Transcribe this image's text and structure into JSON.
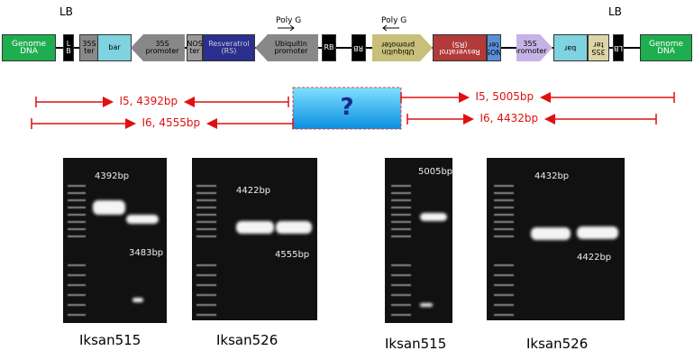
{
  "header": {
    "left_label": "LB",
    "right_label": "LB"
  },
  "construct": {
    "elements": [
      "Genome DNA",
      "L B",
      "35S ter",
      "bar",
      "35S promoter",
      "NOS ter",
      "Resveratrol (RS)",
      "Ubiquitin promoter",
      "RB",
      "RB",
      "Ubiquitin promoter",
      "Resveratrol (RS)",
      "NOS ter",
      "35S promoter",
      "bar",
      "35S ter",
      "LB",
      "Genome DNA"
    ],
    "primers": [
      "Poly G",
      "Poly G"
    ]
  },
  "amplicons": [
    "I5, 4392bp",
    "I6, 4555bp",
    "I5, 5005bp",
    "I6, 4432bp"
  ],
  "unknown": "?",
  "gels": [
    {
      "band_labels": [
        "4392bp",
        "3483bp"
      ],
      "caption": "Iksan515"
    },
    {
      "band_labels": [
        "4422bp",
        "4555bp"
      ],
      "caption": "Iksan526"
    },
    {
      "band_labels": [
        "5005bp"
      ],
      "caption": "Iksan515"
    },
    {
      "band_labels": [
        "4432bp",
        "4422bp"
      ],
      "caption": "Iksan526"
    }
  ]
}
